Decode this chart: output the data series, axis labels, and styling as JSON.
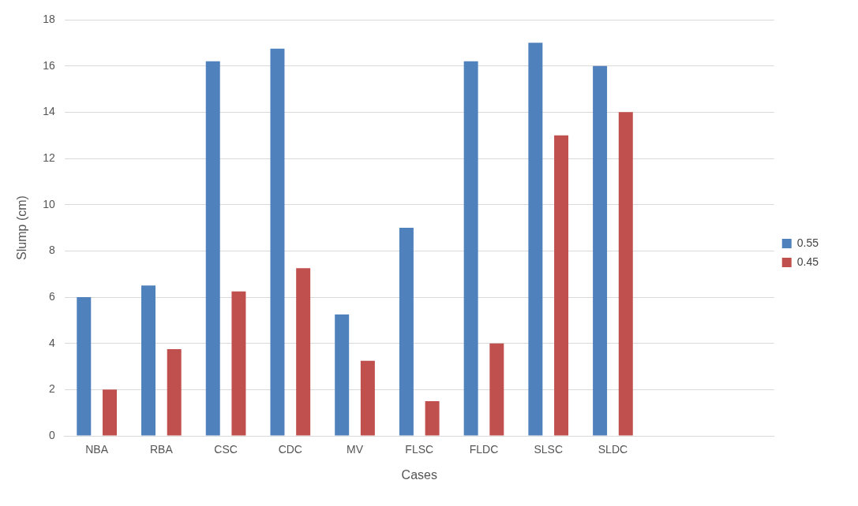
{
  "chart_data": {
    "type": "bar",
    "xlabel": "Cases",
    "ylabel": "Slump (cm)",
    "categories": [
      "NBA",
      "RBA",
      "CSC",
      "CDC",
      "MV",
      "FLSC",
      "FLDC",
      "SLSC",
      "SLDC",
      null,
      null
    ],
    "series": [
      {
        "name": "0.55",
        "color": "#4f81bd",
        "values": [
          6,
          6.5,
          16.2,
          16.75,
          5.25,
          9,
          16.2,
          17,
          16,
          null,
          null
        ]
      },
      {
        "name": "0.45",
        "color": "#c0504d",
        "values": [
          2,
          3.75,
          6.25,
          7.25,
          3.25,
          1.5,
          4,
          13,
          14,
          null,
          null
        ]
      }
    ],
    "ylim": [
      0,
      18
    ],
    "yticks": [
      0,
      2,
      4,
      6,
      8,
      10,
      12,
      14,
      16,
      18
    ],
    "grid": "y",
    "legend": "right"
  }
}
